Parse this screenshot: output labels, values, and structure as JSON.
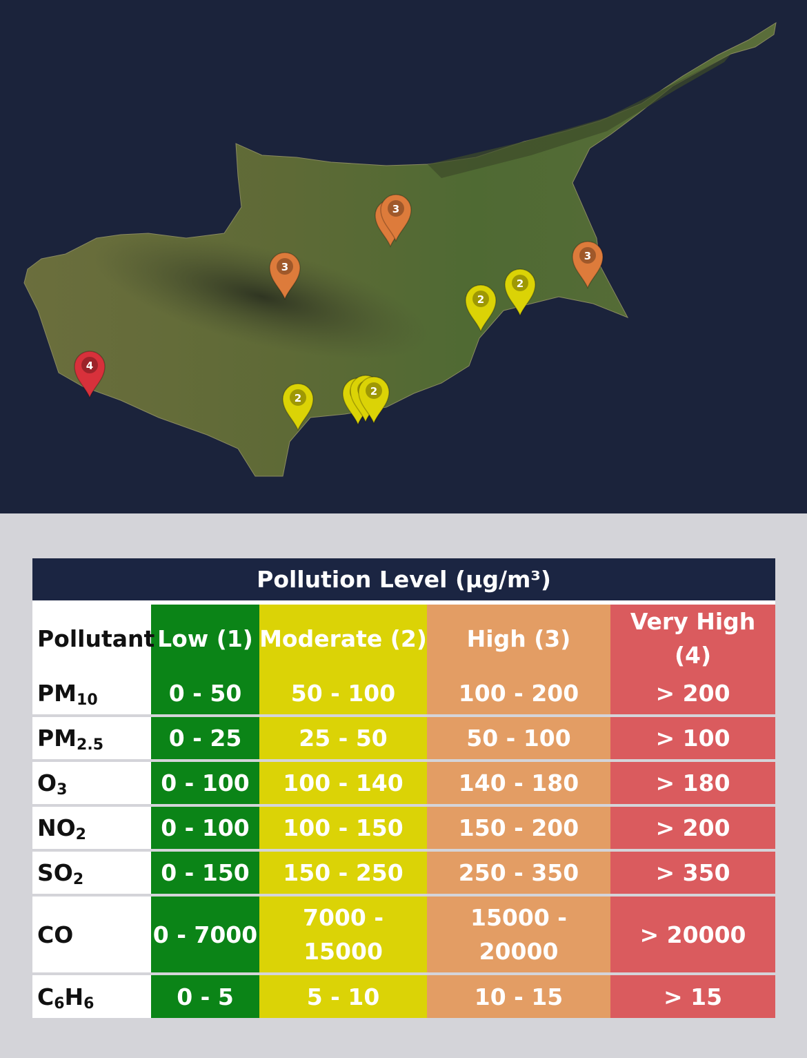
{
  "map": {
    "colors": {
      "background": "#1b233b",
      "level_2": "#dbd306",
      "level_3": "#dd7b3b",
      "level_4": "#d8313b"
    },
    "markers": [
      {
        "level": "3"
      },
      {
        "level": "3"
      },
      {
        "level": "3"
      },
      {
        "level": "3"
      },
      {
        "level": "2"
      },
      {
        "level": "2"
      },
      {
        "level": "2"
      },
      {
        "level": "2"
      },
      {
        "level": "2"
      },
      {
        "level": "2"
      },
      {
        "level": "4"
      }
    ]
  },
  "legend": {
    "title": "Pollution Level (μg/m³)",
    "headers": {
      "pollutant": "Pollutant",
      "low": "Low (1)",
      "moderate": "Moderate (2)",
      "high": "High (3)",
      "very_high": "Very High (4)"
    },
    "colors": {
      "low": "#0b8417",
      "moderate": "#dbd306",
      "high": "#e39d64",
      "very_high": "#da5b5e",
      "title_bg": "#1b2542"
    },
    "rows": [
      {
        "base": "PM",
        "sub": "10",
        "low": "0 - 50",
        "moderate": "50 - 100",
        "high": "100 - 200",
        "very_high": "> 200"
      },
      {
        "base": "PM",
        "sub": "2.5",
        "low": "0 - 25",
        "moderate": "25 - 50",
        "high": "50 - 100",
        "very_high": "> 100"
      },
      {
        "base": "O",
        "sub": "3",
        "low": "0 - 100",
        "moderate": "100 - 140",
        "high": "140 - 180",
        "very_high": "> 180"
      },
      {
        "base": "NO",
        "sub": "2",
        "low": "0 - 100",
        "moderate": "100 - 150",
        "high": "150 - 200",
        "very_high": "> 200"
      },
      {
        "base": "SO",
        "sub": "2",
        "low": "0 - 150",
        "moderate": "150 - 250",
        "high": "250 - 350",
        "very_high": "> 350"
      },
      {
        "base": "CO",
        "sub": "",
        "low": "0 - 7000",
        "moderate": "7000 - 15000",
        "high": "15000 - 20000",
        "very_high": "> 20000"
      },
      {
        "base": "C",
        "sub": "6",
        "base2": "H",
        "sub2": "6",
        "low": "0 - 5",
        "moderate": "5 - 10",
        "high": "10 - 15",
        "very_high": "> 15"
      }
    ]
  }
}
